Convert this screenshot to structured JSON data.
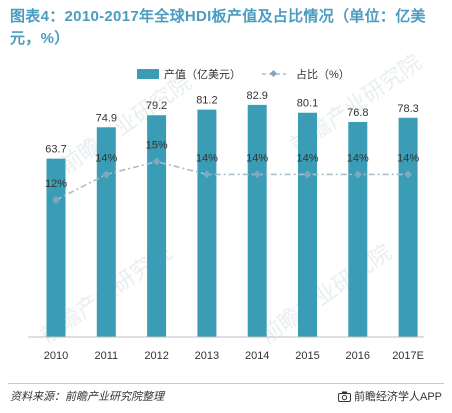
{
  "title": "图表4：2010-2017年全球HDI板产值及占比情况（单位：亿美元，%）",
  "source": "资料来源：前瞻产业研究院整理",
  "credit": "前瞻经济学人APP",
  "watermark": "前瞻产业研究院",
  "colors": {
    "title": "#4a9cc0",
    "bar": "#3a9db5",
    "line": "#a9bfcc",
    "marker": "#7fa8be",
    "text": "#333333"
  },
  "chart_data": {
    "type": "bar",
    "categories": [
      "2010",
      "2011",
      "2012",
      "2013",
      "2014",
      "2015",
      "2016",
      "2017E"
    ],
    "series": [
      {
        "name": "产值（亿美元）",
        "type": "bar",
        "axis": "left",
        "values": [
          63.7,
          74.9,
          79.2,
          81.2,
          82.9,
          80.1,
          76.8,
          78.3
        ],
        "labels": [
          "63.7",
          "74.9",
          "79.2",
          "81.2",
          "82.9",
          "80.1",
          "76.8",
          "78.3"
        ]
      },
      {
        "name": "占比（%）",
        "type": "line",
        "axis": "right",
        "values": [
          12,
          14,
          15,
          14,
          14,
          14,
          14,
          14
        ],
        "labels": [
          "12%",
          "14%",
          "15%",
          "14%",
          "14%",
          "14%",
          "14%",
          "14%"
        ]
      }
    ],
    "ylim": [
      0,
      100
    ],
    "y2lim": [
      0,
      100
    ],
    "legend": "top",
    "grid": false
  }
}
